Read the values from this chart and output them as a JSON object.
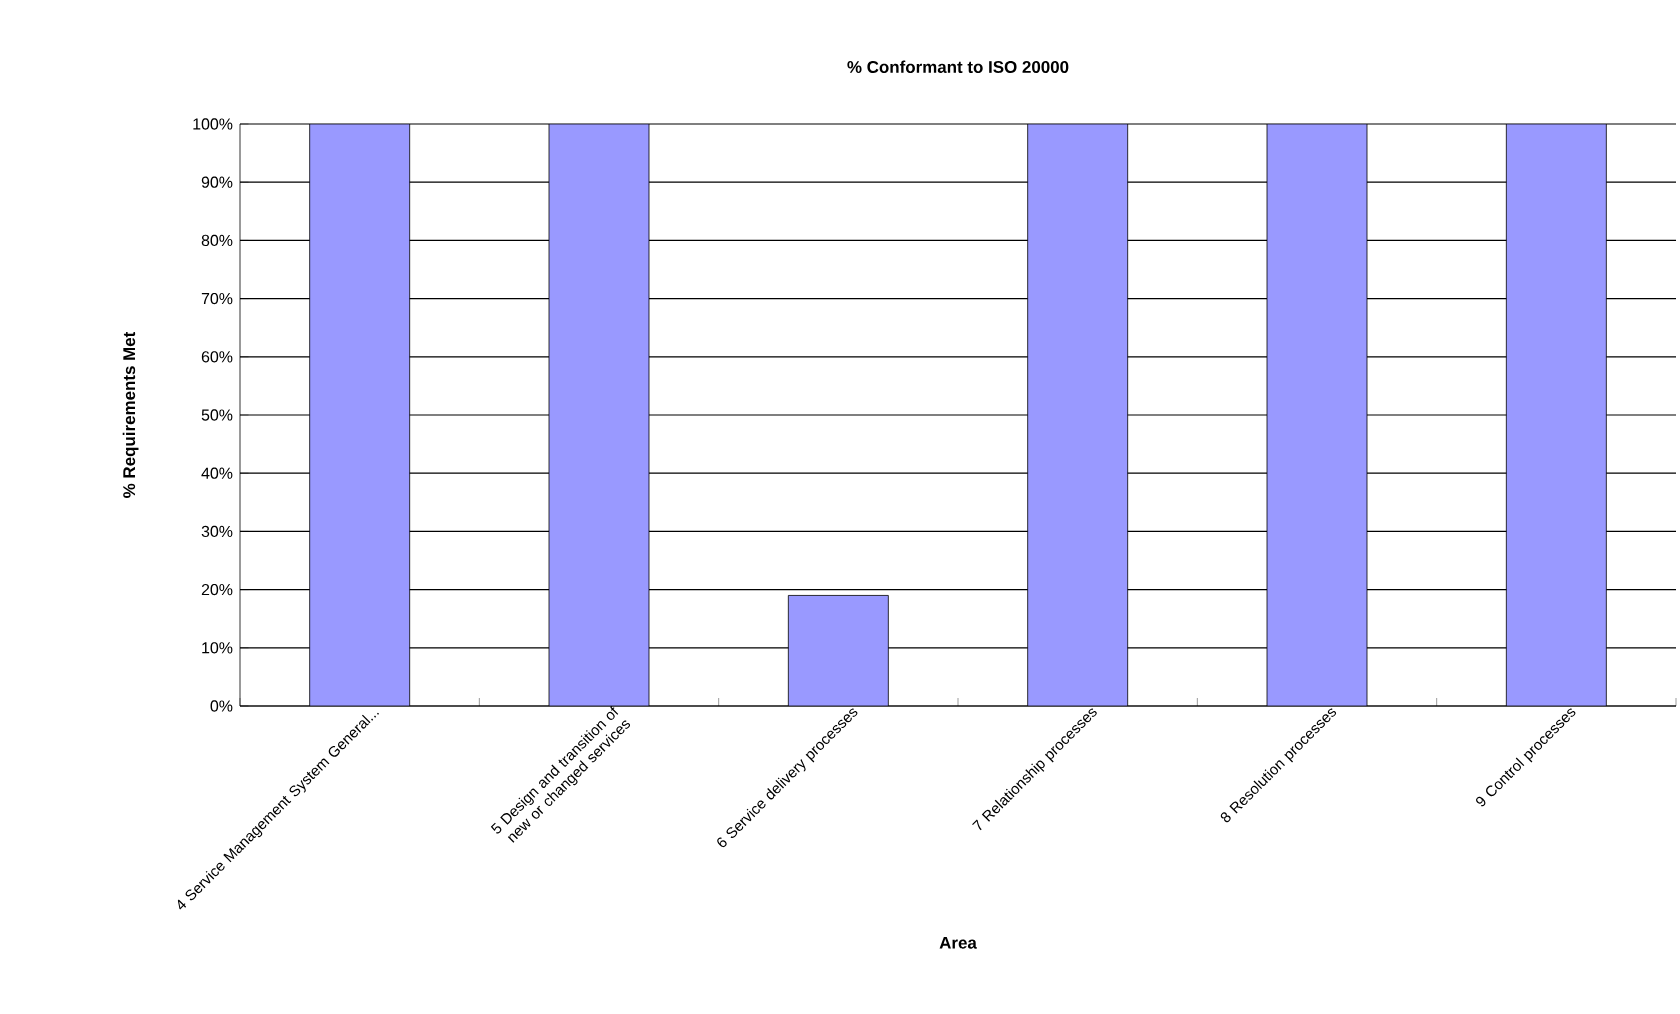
{
  "chart_data": {
    "type": "bar",
    "title": "% Conformant to ISO 20000",
    "xlabel": "Area",
    "ylabel": "% Requirements Met",
    "categories": [
      "4 Service Management System General...",
      "5 Design and transition of new or changed services",
      "6 Service delivery processes",
      "7 Relationship processes",
      "8 Resolution processes",
      "9 Control processes"
    ],
    "values": [
      100,
      100,
      19,
      100,
      100,
      100
    ],
    "color": "#9999ff",
    "ylim": [
      0,
      100
    ],
    "yticks": [
      {
        "value": 0,
        "label": "0%"
      },
      {
        "value": 10,
        "label": "10%"
      },
      {
        "value": 20,
        "label": "20%"
      },
      {
        "value": 30,
        "label": "30%"
      },
      {
        "value": 40,
        "label": "40%"
      },
      {
        "value": 50,
        "label": "50%"
      },
      {
        "value": 60,
        "label": "60%"
      },
      {
        "value": 70,
        "label": "70%"
      },
      {
        "value": 80,
        "label": "80%"
      },
      {
        "value": 90,
        "label": "90%"
      },
      {
        "value": 100,
        "label": "100%"
      }
    ],
    "grid": "y"
  }
}
